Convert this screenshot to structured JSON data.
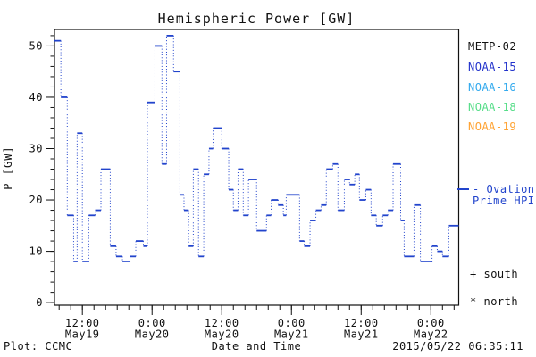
{
  "title": "Hemispheric Power [GW]",
  "footer": {
    "plot_credit": "Plot: CCMC",
    "timestamp": "2015/05/22 06:35:11"
  },
  "legend": {
    "satellites": [
      {
        "name": "METP-02",
        "color": "#111111"
      },
      {
        "name": "NOAA-15",
        "color": "#2233cc"
      },
      {
        "name": "NOAA-16",
        "color": "#33aaee"
      },
      {
        "name": "NOAA-18",
        "color": "#55dd88"
      },
      {
        "name": "NOAA-19",
        "color": "#ffa333"
      }
    ],
    "model": {
      "label_line1": "- Ovation",
      "label_line2": "Prime HPI",
      "color": "#2244cc"
    },
    "hemisphere_markers": [
      {
        "symbol": "+",
        "label": "south"
      },
      {
        "symbol": "*",
        "label": "north"
      }
    ]
  },
  "chart_data": {
    "type": "line",
    "style": "stepped, dotted vertical connectors",
    "title": "Hemispheric Power [GW]",
    "xlabel": "Date and Time",
    "ylabel": "P [GW]",
    "line_color": "#2244cc",
    "x_unit": "hours since 2015-05-19 00:00",
    "x_range": [
      7.2,
      76.8
    ],
    "y_range": [
      -0.5,
      53.2
    ],
    "y_ticks": [
      0,
      10,
      20,
      30,
      40,
      50
    ],
    "y_minor_step": 2,
    "x_minor_step": 2,
    "x_ticks": [
      {
        "t": 12,
        "time": "12:00",
        "date": "May19"
      },
      {
        "t": 24,
        "time": "0:00",
        "date": "May20"
      },
      {
        "t": 36,
        "time": "12:00",
        "date": "May20"
      },
      {
        "t": 48,
        "time": "0:00",
        "date": "May21"
      },
      {
        "t": 60,
        "time": "12:00",
        "date": "May21"
      },
      {
        "t": 72,
        "time": "0:00",
        "date": "May22"
      }
    ],
    "series": [
      {
        "name": "Ovation Prime HPI",
        "t": [
          7.2,
          8.3,
          9.4,
          10.5,
          11.1,
          12.0,
          13.1,
          14.2,
          15.2,
          16.8,
          17.8,
          18.9,
          20.2,
          21.2,
          22.5,
          23.2,
          24.5,
          25.7,
          26.5,
          27.7,
          28.8,
          29.5,
          30.3,
          31.1,
          32.0,
          32.9,
          33.8,
          34.5,
          36.0,
          37.2,
          38.0,
          38.8,
          39.7,
          40.6,
          42.0,
          43.7,
          44.5,
          45.7,
          46.6,
          47.1,
          49.4,
          50.2,
          51.2,
          52.2,
          53.1,
          54.0,
          55.1,
          56.0,
          57.1,
          58.0,
          58.9,
          59.7,
          60.8,
          61.7,
          62.6,
          63.7,
          64.6,
          65.5,
          66.8,
          67.4,
          69.1,
          70.2,
          72.2,
          73.1,
          74.0,
          75.1
        ],
        "gw": [
          51,
          40,
          17,
          8,
          33,
          8,
          17,
          18,
          26,
          11,
          9,
          8,
          9,
          12,
          11,
          39,
          50,
          27,
          52,
          45,
          21,
          18,
          11,
          26,
          9,
          25,
          30,
          34,
          30,
          22,
          18,
          26,
          17,
          24,
          14,
          17,
          20,
          19,
          17,
          21,
          12,
          11,
          16,
          18,
          19,
          26,
          27,
          18,
          24,
          23,
          25,
          20,
          22,
          17,
          15,
          17,
          18,
          27,
          16,
          9,
          19,
          8,
          11,
          10,
          9,
          15
        ],
        "t_end": 76.8
      }
    ]
  }
}
